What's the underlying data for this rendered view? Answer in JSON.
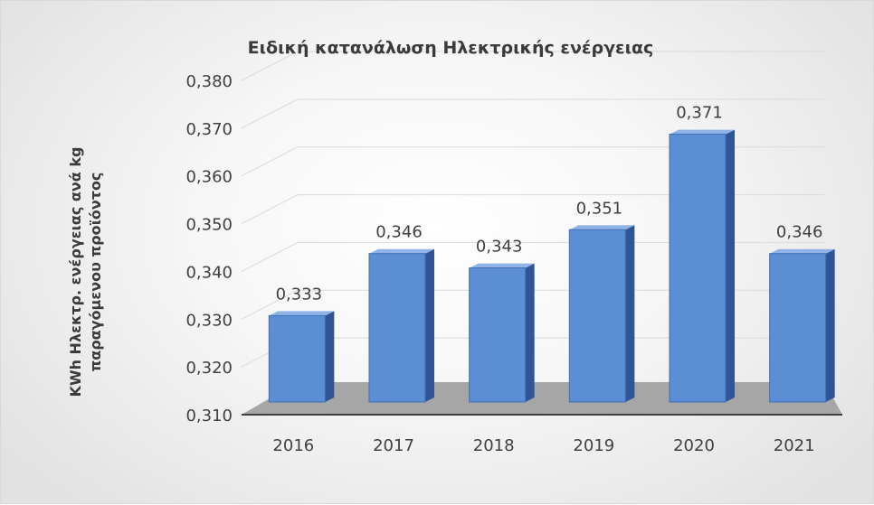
{
  "chart_data": {
    "type": "bar",
    "title": "Ειδική κατανάλωση  Ηλεκτρικής ενέργειας",
    "ylabel": [
      "KWh Ηλεκτρ. ενέργειας ανά kg",
      "παραγόμενου προϊόντος"
    ],
    "xlabel": "",
    "categories": [
      "2016",
      "2017",
      "2018",
      "2019",
      "2020",
      "2021"
    ],
    "values": [
      0.333,
      0.346,
      0.343,
      0.351,
      0.371,
      0.346
    ],
    "data_labels": [
      "0,333",
      "0,346",
      "0,343",
      "0,351",
      "0,371",
      "0,346"
    ],
    "ylim": [
      0.31,
      0.38
    ],
    "yticks": [
      0.31,
      0.32,
      0.33,
      0.34,
      0.35,
      0.36,
      0.37,
      0.38
    ],
    "ytick_labels": [
      "0,310",
      "0,320",
      "0,330",
      "0,340",
      "0,350",
      "0,360",
      "0,370",
      "0,380"
    ],
    "grid": true,
    "style": "3d-column",
    "colors": {
      "bar_front": "#5b8ed4",
      "bar_side": "#2f5597",
      "bar_top": "#8fb3e6",
      "floor": "#a6a6a6",
      "gridline": "#d9d9d9",
      "axis": "#404040"
    }
  }
}
